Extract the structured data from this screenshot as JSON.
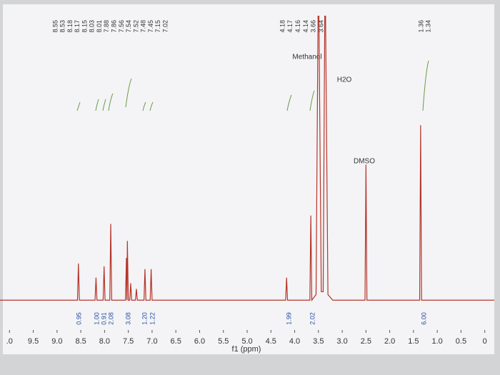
{
  "chart_data": {
    "type": "line",
    "xlabel": "f1 (ppm)",
    "xlim": [
      10.2,
      -0.2
    ],
    "ylim": [
      -6,
      100
    ],
    "xticks": [
      {
        "value": 10.0,
        "label": ".0"
      },
      9.5,
      {
        "value": 9.0,
        "label": "9.0"
      },
      8.5,
      {
        "value": 8.0,
        "label": "8.0"
      },
      7.5,
      {
        "value": 7.0,
        "label": "7.0"
      },
      6.5,
      {
        "value": 6.0,
        "label": "6.0"
      },
      5.5,
      {
        "value": 5.0,
        "label": "5.0"
      },
      4.5,
      {
        "value": 4.0,
        "label": "4.0"
      },
      3.5,
      {
        "value": 3.0,
        "label": "3.0"
      },
      2.5,
      {
        "value": 2.0,
        "label": "2.0"
      },
      1.5,
      {
        "value": 1.0,
        "label": "1.0"
      },
      0.5,
      0
    ],
    "series": [
      {
        "color": "#b5352a",
        "x": [
          10.2,
          8.57,
          8.55,
          8.53,
          8.2,
          8.18,
          8.16,
          8.03,
          8.01,
          7.99,
          7.89,
          7.87,
          7.85,
          7.56,
          7.54,
          7.53,
          7.52,
          7.5,
          7.47,
          7.45,
          7.43,
          7.35,
          7.33,
          7.31,
          7.17,
          7.15,
          7.13,
          7.04,
          7.02,
          7.0,
          4.19,
          4.17,
          4.15,
          3.68,
          3.66,
          3.64,
          3.55,
          3.5,
          3.44,
          3.4,
          3.36,
          3.3,
          3.2,
          2.52,
          2.5,
          2.48,
          1.37,
          1.35,
          1.33,
          -0.2
        ],
        "values": [
          0,
          0,
          13,
          0,
          0,
          8,
          0,
          0,
          12,
          0,
          0,
          27,
          0,
          0,
          15,
          0,
          21,
          0,
          0,
          6,
          0,
          0,
          4,
          0,
          0,
          11,
          0,
          0,
          11,
          0,
          0,
          8,
          0,
          0,
          30,
          0,
          2,
          120,
          3,
          3,
          120,
          2,
          0,
          0,
          48,
          0,
          0,
          62,
          0,
          0
        ]
      }
    ],
    "annotations": [
      "Methanol",
      "H2O",
      "DMSO"
    ],
    "peak_labels": [
      [
        "8.55",
        "8.53",
        "8.18",
        "8.17",
        "8.15",
        "8.03",
        "8.01",
        "7.88",
        "7.86",
        "7.56",
        "7.54",
        "7.52",
        "7.48",
        "7.45",
        "7.15",
        "7.02"
      ],
      [
        "4.18",
        "4.17",
        "4.16",
        "4.14",
        "3.66",
        "3.64"
      ],
      [
        "1.36",
        "1.34"
      ]
    ],
    "integrals": [
      "0.95",
      "1.00",
      "0.91",
      "2.08",
      "3.08",
      "1.20",
      "1.22",
      "1.99",
      "2.02",
      "6.00"
    ]
  }
}
